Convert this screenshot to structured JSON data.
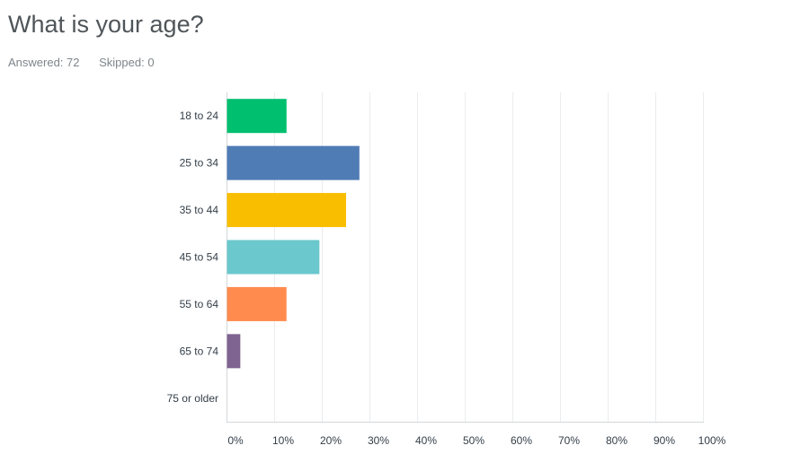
{
  "question": {
    "title": "What is your age?",
    "answered_label": "Answered: 72",
    "skipped_label": "Skipped: 0"
  },
  "chart_data": {
    "type": "bar",
    "orientation": "horizontal",
    "title": "What is your age?",
    "xlabel": "",
    "ylabel": "",
    "xlim": [
      0,
      100
    ],
    "grid": true,
    "categories": [
      "18 to 24",
      "25 to 34",
      "35 to 44",
      "45 to 54",
      "55 to 64",
      "65 to 74",
      "75 or older"
    ],
    "values": [
      12.5,
      27.8,
      25.0,
      19.4,
      12.5,
      2.8,
      0
    ],
    "colors": [
      "#00bf6f",
      "#507cb6",
      "#f9be00",
      "#6bc8cd",
      "#ff8b4f",
      "#7f6391",
      "#dbdbdb"
    ],
    "ticks": [
      0,
      10,
      20,
      30,
      40,
      50,
      60,
      70,
      80,
      90,
      100
    ],
    "tick_labels": [
      "0%",
      "10%",
      "20%",
      "30%",
      "40%",
      "50%",
      "60%",
      "70%",
      "80%",
      "90%",
      "100%"
    ]
  }
}
